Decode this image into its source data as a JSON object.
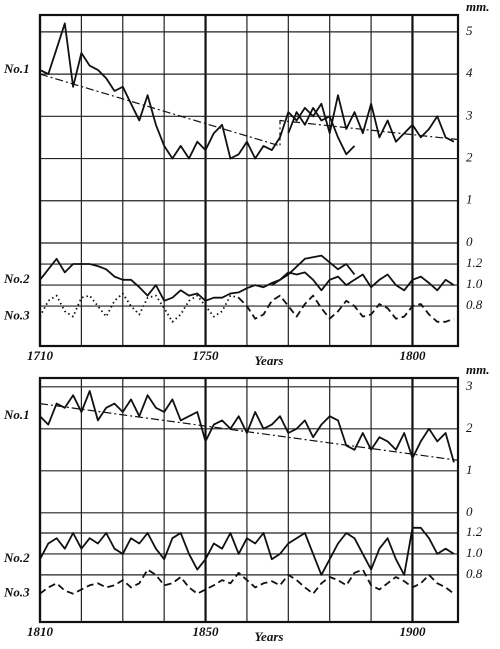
{
  "chart_data": [
    {
      "type": "line",
      "x_label": "Years",
      "y_unit": "mm.",
      "xlim": [
        1710,
        1811
      ],
      "xticks": [
        1710,
        1750,
        1800
      ],
      "xgrid": [
        1720,
        1730,
        1740,
        1750,
        1760,
        1770,
        1780,
        1790,
        1800
      ],
      "ylim": [
        -2.44,
        5.4
      ],
      "yticks": [
        0,
        1,
        2,
        3,
        4,
        5
      ],
      "y2lim": [
        0.42,
        3.57
      ],
      "y2ticks": [
        0.8,
        {
          "value": 1.0,
          "label": "1.0"
        },
        1.2
      ],
      "grid": true,
      "series": [
        {
          "name": "No.1",
          "color": "#111",
          "dash": "solid",
          "x": [
            1710,
            1712,
            1714,
            1716,
            1718,
            1720,
            1722,
            1724,
            1726,
            1728,
            1730,
            1732,
            1734,
            1736,
            1738,
            1740,
            1742,
            1744,
            1746,
            1748,
            1750,
            1752,
            1754,
            1756,
            1758,
            1760,
            1762,
            1764,
            1766,
            1768,
            1770,
            1772,
            1774,
            1776,
            1778,
            1780,
            1782,
            1784,
            1786,
            1788,
            1790,
            1792,
            1794,
            1796,
            1798,
            1800,
            1802,
            1804,
            1806,
            1808,
            1810
          ],
          "values": [
            4.1,
            4.0,
            4.6,
            5.2,
            3.7,
            4.5,
            4.2,
            4.1,
            3.9,
            3.6,
            3.7,
            3.3,
            2.9,
            3.5,
            2.8,
            2.3,
            2.0,
            2.3,
            2.0,
            2.4,
            2.2,
            2.6,
            2.8,
            2.0,
            2.1,
            2.4,
            2.0,
            2.3,
            2.2,
            2.5,
            3.1,
            2.9,
            3.2,
            3.0,
            3.3,
            2.6,
            3.5,
            2.7,
            3.1,
            2.6,
            3.3,
            2.5,
            2.9,
            2.4,
            2.6,
            2.8,
            2.5,
            2.7,
            3.0,
            2.5,
            2.4
          ]
        },
        {
          "color": "#111",
          "dash": "solid",
          "x": [
            1770,
            1772,
            1774,
            1776,
            1778,
            1780,
            1782,
            1784,
            1786
          ],
          "values": [
            2.6,
            3.1,
            2.8,
            3.2,
            2.9,
            3.0,
            2.5,
            2.1,
            2.3
          ]
        },
        {
          "color": "#111",
          "dash": "dashdot",
          "x": [
            1710,
            1768,
            1768,
            1811
          ],
          "values": [
            4.0,
            2.3,
            2.9,
            2.45
          ]
        },
        {
          "name": "No.2",
          "color": "#111",
          "dash": "solid",
          "axis": "y2",
          "x": [
            1710,
            1712,
            1714,
            1716,
            1718,
            1720,
            1722,
            1724,
            1726,
            1728,
            1730,
            1732,
            1734,
            1736,
            1738,
            1740,
            1742,
            1744,
            1746,
            1748,
            1750,
            1752,
            1754,
            1756,
            1758,
            1760,
            1762,
            1764,
            1766,
            1768,
            1770,
            1772,
            1774,
            1776,
            1778,
            1780,
            1782,
            1784,
            1786,
            1788,
            1790,
            1792,
            1794,
            1796,
            1798,
            1800,
            1802,
            1804,
            1806,
            1808,
            1810
          ],
          "values": [
            1.05,
            1.15,
            1.25,
            1.12,
            1.2,
            1.2,
            1.2,
            1.18,
            1.15,
            1.08,
            1.05,
            1.05,
            0.98,
            0.9,
            1.0,
            0.85,
            0.88,
            0.95,
            0.9,
            0.92,
            0.85,
            0.88,
            0.88,
            0.92,
            0.93,
            0.97,
            1.0,
            0.98,
            1.02,
            1.05,
            1.12,
            1.1,
            1.12,
            1.05,
            0.95,
            1.05,
            1.08,
            1.0,
            1.05,
            1.1,
            0.98,
            1.05,
            1.1,
            1.0,
            0.95,
            1.05,
            1.08,
            1.02,
            0.95,
            1.05,
            1.0
          ]
        },
        {
          "color": "#111",
          "dash": "solid",
          "axis": "y2",
          "x": [
            1766,
            1770,
            1774,
            1778,
            1782,
            1784,
            1786
          ],
          "values": [
            1.0,
            1.1,
            1.25,
            1.28,
            1.15,
            1.2,
            1.1
          ]
        },
        {
          "name": "No.3",
          "color": "#111",
          "dash": "dotted",
          "axis": "y2",
          "x": [
            1710,
            1712,
            1714,
            1716,
            1718,
            1720,
            1722,
            1724,
            1726,
            1728,
            1730,
            1732,
            1734,
            1736,
            1738,
            1740,
            1742,
            1744,
            1746,
            1748,
            1750,
            1752,
            1754,
            1756,
            1758
          ],
          "values": [
            0.7,
            0.85,
            0.9,
            0.75,
            0.7,
            0.88,
            0.9,
            0.8,
            0.7,
            0.85,
            0.92,
            0.8,
            0.72,
            0.88,
            0.9,
            0.78,
            0.65,
            0.72,
            0.85,
            0.9,
            0.8,
            0.7,
            0.75,
            0.9,
            0.88
          ]
        },
        {
          "color": "#111",
          "dash": "dashed",
          "axis": "y2",
          "x": [
            1758,
            1760,
            1762,
            1764,
            1766,
            1768,
            1770,
            1772,
            1774,
            1776,
            1778,
            1780,
            1782,
            1784,
            1786,
            1788,
            1790,
            1792,
            1794,
            1796,
            1798,
            1800,
            1802,
            1804,
            1806,
            1808,
            1810
          ],
          "values": [
            0.88,
            0.8,
            0.68,
            0.72,
            0.85,
            0.9,
            0.8,
            0.7,
            0.82,
            0.9,
            0.78,
            0.68,
            0.75,
            0.85,
            0.8,
            0.7,
            0.72,
            0.82,
            0.78,
            0.68,
            0.7,
            0.8,
            0.82,
            0.72,
            0.65,
            0.65,
            0.68
          ]
        }
      ]
    },
    {
      "type": "line",
      "x_label": "Years",
      "y_unit": "mm.",
      "xlim": [
        1810,
        1911
      ],
      "xticks": [
        1810,
        1850,
        1900
      ],
      "xgrid": [
        1820,
        1830,
        1840,
        1850,
        1860,
        1870,
        1880,
        1890,
        1900
      ],
      "ylim": [
        -2.6,
        3.21
      ],
      "yticks": [
        0,
        1,
        2,
        3
      ],
      "y2lim": [
        0.35,
        2.68
      ],
      "y2ticks": [
        0.8,
        {
          "value": 1.0,
          "label": "1.0"
        },
        1.2
      ],
      "grid": true,
      "series": [
        {
          "name": "No.1",
          "color": "#111",
          "dash": "solid",
          "x": [
            1810,
            1812,
            1814,
            1816,
            1818,
            1820,
            1822,
            1824,
            1826,
            1828,
            1830,
            1832,
            1834,
            1836,
            1838,
            1840,
            1842,
            1844,
            1846,
            1848,
            1850,
            1852,
            1854,
            1856,
            1858,
            1860,
            1862,
            1864,
            1866,
            1868,
            1870,
            1872,
            1874,
            1876,
            1878,
            1880,
            1882,
            1884,
            1886,
            1888,
            1890,
            1892,
            1894,
            1896,
            1898,
            1900,
            1902,
            1904,
            1906,
            1908,
            1910
          ],
          "values": [
            2.3,
            2.1,
            2.6,
            2.5,
            2.8,
            2.4,
            2.9,
            2.2,
            2.5,
            2.6,
            2.4,
            2.7,
            2.3,
            2.8,
            2.5,
            2.4,
            2.7,
            2.2,
            2.3,
            2.4,
            1.7,
            2.1,
            2.2,
            2.0,
            2.3,
            1.9,
            2.4,
            2.0,
            2.1,
            2.3,
            1.9,
            2.0,
            2.2,
            1.8,
            2.1,
            2.3,
            2.2,
            1.6,
            1.5,
            1.9,
            1.5,
            1.8,
            1.7,
            1.5,
            1.9,
            1.3,
            1.7,
            2.0,
            1.7,
            1.9,
            1.2
          ]
        },
        {
          "color": "#111",
          "dash": "dashdot",
          "x": [
            1810,
            1911
          ],
          "values": [
            2.6,
            1.25
          ]
        },
        {
          "name": "No.2",
          "color": "#111",
          "dash": "solid",
          "axis": "y2",
          "x": [
            1810,
            1812,
            1814,
            1816,
            1818,
            1820,
            1822,
            1824,
            1826,
            1828,
            1830,
            1832,
            1834,
            1836,
            1838,
            1840,
            1842,
            1844,
            1846,
            1848,
            1850,
            1852,
            1854,
            1856,
            1858,
            1860,
            1862,
            1864,
            1866,
            1868,
            1870,
            1872,
            1874,
            1876,
            1878,
            1880,
            1882,
            1884,
            1886,
            1888,
            1890,
            1892,
            1894,
            1896,
            1898,
            1900,
            1902,
            1904,
            1906,
            1908,
            1910
          ],
          "values": [
            0.95,
            1.1,
            1.15,
            1.05,
            1.2,
            1.05,
            1.15,
            1.1,
            1.2,
            1.05,
            1.0,
            1.15,
            1.1,
            1.2,
            1.05,
            0.95,
            1.15,
            1.2,
            1.0,
            0.85,
            0.95,
            1.1,
            1.05,
            1.2,
            1.0,
            1.15,
            1.1,
            1.2,
            0.95,
            1.0,
            1.1,
            1.15,
            1.2,
            1.0,
            0.8,
            0.95,
            1.1,
            1.2,
            1.15,
            1.0,
            0.85,
            1.05,
            1.15,
            0.95,
            0.8,
            1.25,
            1.25,
            1.15,
            1.0,
            1.05,
            1.0
          ]
        },
        {
          "name": "No.3",
          "color": "#111",
          "dash": "dashed",
          "axis": "y2",
          "x": [
            1810,
            1812,
            1814,
            1816,
            1818,
            1820,
            1822,
            1824,
            1826,
            1828,
            1830,
            1832,
            1834,
            1836,
            1838,
            1840,
            1842,
            1844,
            1846,
            1848,
            1850,
            1852,
            1854,
            1856,
            1858,
            1860,
            1862,
            1864,
            1866,
            1868,
            1870,
            1872,
            1874,
            1876,
            1878,
            1880,
            1882,
            1884,
            1886,
            1888,
            1890,
            1892,
            1894,
            1896,
            1898,
            1900,
            1902,
            1904,
            1906,
            1908,
            1910
          ],
          "values": [
            0.62,
            0.68,
            0.72,
            0.65,
            0.62,
            0.66,
            0.7,
            0.72,
            0.68,
            0.7,
            0.75,
            0.68,
            0.72,
            0.85,
            0.8,
            0.7,
            0.72,
            0.78,
            0.68,
            0.62,
            0.66,
            0.7,
            0.75,
            0.72,
            0.82,
            0.75,
            0.68,
            0.72,
            0.74,
            0.7,
            0.8,
            0.75,
            0.68,
            0.62,
            0.72,
            0.78,
            0.75,
            0.7,
            0.82,
            0.85,
            0.7,
            0.66,
            0.72,
            0.78,
            0.74,
            0.68,
            0.72,
            0.8,
            0.72,
            0.68,
            0.62
          ]
        }
      ]
    }
  ]
}
